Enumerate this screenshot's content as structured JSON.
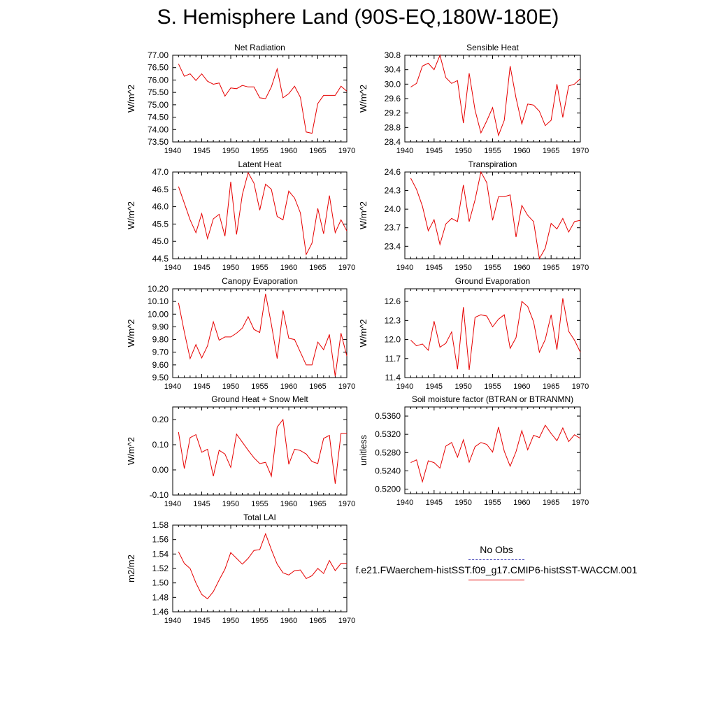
{
  "figure": {
    "title": "S. Hemisphere Land (90S-EQ,180W-180E)"
  },
  "legend": {
    "entries": [
      {
        "label": "No Obs",
        "color": "#3c3cb4",
        "dash": "dashed"
      },
      {
        "label": "f.e21.FWaerchem-histSST.f09_g17.CMIP6-histSST-WACCM.001",
        "color": "#e60000",
        "dash": "solid"
      }
    ]
  },
  "colors": {
    "series": "#e60000"
  },
  "chart_data": [
    {
      "type": "line",
      "title": "Net Radiation",
      "ylabel": "W/m^2",
      "xlim": [
        1940,
        1970
      ],
      "ylim": [
        73.5,
        77.0
      ],
      "yticks": [
        73.5,
        74.0,
        74.5,
        75.0,
        75.5,
        76.0,
        76.5,
        77.0
      ],
      "ytick_labels": [
        "73.50",
        "74.00",
        "74.50",
        "75.00",
        "75.50",
        "76.00",
        "76.50",
        "77.00"
      ],
      "xticks": [
        1940,
        1945,
        1950,
        1955,
        1960,
        1965,
        1970
      ],
      "xtick_labels": [
        "1940",
        "1945",
        "1950",
        "1955",
        "1960",
        "1965",
        "1970"
      ],
      "x_start": 1941,
      "values": [
        76.65,
        76.15,
        76.25,
        75.98,
        76.25,
        75.95,
        75.83,
        75.88,
        75.35,
        75.68,
        75.65,
        75.78,
        75.72,
        75.72,
        75.28,
        75.25,
        75.72,
        76.45,
        75.28,
        75.45,
        75.75,
        75.3,
        73.9,
        73.85,
        75.05,
        75.38,
        75.38,
        75.38,
        75.75,
        75.55
      ]
    },
    {
      "type": "line",
      "title": "Sensible Heat",
      "ylabel": "W/m^2",
      "xlim": [
        1940,
        1970
      ],
      "ylim": [
        28.4,
        30.8
      ],
      "yticks": [
        28.4,
        28.8,
        29.2,
        29.6,
        30.0,
        30.4,
        30.8
      ],
      "ytick_labels": [
        "28.4",
        "28.8",
        "29.2",
        "29.6",
        "30.0",
        "30.4",
        "30.8"
      ],
      "xticks": [
        1940,
        1945,
        1950,
        1955,
        1960,
        1965,
        1970
      ],
      "xtick_labels": [
        "1940",
        "1945",
        "1950",
        "1955",
        "1960",
        "1965",
        "1970"
      ],
      "x_start": 1941,
      "values": [
        29.92,
        30.02,
        30.5,
        30.58,
        30.4,
        30.8,
        30.18,
        30.02,
        30.1,
        28.92,
        30.3,
        29.28,
        28.65,
        28.98,
        29.35,
        28.58,
        29.0,
        30.5,
        29.62,
        28.9,
        29.45,
        29.42,
        29.25,
        28.85,
        29.0,
        30.0,
        29.08,
        29.95,
        30.0,
        30.15
      ]
    },
    {
      "type": "line",
      "title": "Latent Heat",
      "ylabel": "W/m^2",
      "xlim": [
        1940,
        1970
      ],
      "ylim": [
        44.5,
        47.0
      ],
      "yticks": [
        44.5,
        45.0,
        45.5,
        46.0,
        46.5,
        47.0
      ],
      "ytick_labels": [
        "44.5",
        "45.0",
        "45.5",
        "46.0",
        "46.5",
        "47.0"
      ],
      "xticks": [
        1940,
        1945,
        1950,
        1955,
        1960,
        1965,
        1970
      ],
      "xtick_labels": [
        "1940",
        "1945",
        "1950",
        "1955",
        "1960",
        "1965",
        "1970"
      ],
      "x_start": 1941,
      "values": [
        46.58,
        46.1,
        45.62,
        45.25,
        45.8,
        45.08,
        45.65,
        45.78,
        45.15,
        46.72,
        45.2,
        46.35,
        46.98,
        46.68,
        45.9,
        46.65,
        46.5,
        45.72,
        45.62,
        46.45,
        46.25,
        45.82,
        44.62,
        44.95,
        45.95,
        45.22,
        46.32,
        45.25,
        45.62,
        45.3
      ]
    },
    {
      "type": "line",
      "title": "Transpiration",
      "ylabel": "W/m^2",
      "xlim": [
        1940,
        1970
      ],
      "ylim": [
        23.2,
        24.6
      ],
      "yticks": [
        23.4,
        23.7,
        24.0,
        24.3,
        24.6
      ],
      "ytick_labels": [
        "23.4",
        "23.7",
        "24.0",
        "24.3",
        "24.6"
      ],
      "xticks": [
        1940,
        1945,
        1950,
        1955,
        1960,
        1965,
        1970
      ],
      "xtick_labels": [
        "1940",
        "1945",
        "1950",
        "1955",
        "1960",
        "1965",
        "1970"
      ],
      "x_start": 1941,
      "values": [
        24.5,
        24.32,
        24.05,
        23.65,
        23.83,
        23.43,
        23.76,
        23.85,
        23.8,
        24.39,
        23.8,
        24.15,
        24.6,
        24.43,
        23.82,
        24.2,
        24.2,
        24.23,
        23.55,
        24.06,
        23.9,
        23.8,
        23.2,
        23.37,
        23.77,
        23.68,
        23.85,
        23.63,
        23.8,
        23.82
      ]
    },
    {
      "type": "line",
      "title": "Canopy Evaporation",
      "ylabel": "W/m^2",
      "xlim": [
        1940,
        1970
      ],
      "ylim": [
        9.5,
        10.2
      ],
      "yticks": [
        9.5,
        9.6,
        9.7,
        9.8,
        9.9,
        10.0,
        10.1,
        10.2
      ],
      "ytick_labels": [
        "9.50",
        "9.60",
        "9.70",
        "9.80",
        "9.90",
        "10.00",
        "10.10",
        "10.20"
      ],
      "xticks": [
        1940,
        1945,
        1950,
        1955,
        1960,
        1965,
        1970
      ],
      "xtick_labels": [
        "1940",
        "1945",
        "1950",
        "1955",
        "1960",
        "1965",
        "1970"
      ],
      "x_start": 1941,
      "values": [
        10.09,
        9.86,
        9.65,
        9.76,
        9.655,
        9.75,
        9.94,
        9.795,
        9.82,
        9.82,
        9.85,
        9.89,
        9.98,
        9.88,
        9.855,
        10.16,
        9.92,
        9.65,
        10.03,
        9.81,
        9.8,
        9.7,
        9.6,
        9.6,
        9.78,
        9.72,
        9.84,
        9.51,
        9.85,
        9.67
      ]
    },
    {
      "type": "line",
      "title": "Ground Evaporation",
      "ylabel": "W/m^2",
      "xlim": [
        1940,
        1970
      ],
      "ylim": [
        11.4,
        12.8
      ],
      "yticks": [
        11.4,
        11.7,
        12.0,
        12.3,
        12.6
      ],
      "ytick_labels": [
        "11.4",
        "11.7",
        "12.0",
        "12.3",
        "12.6"
      ],
      "xticks": [
        1940,
        1945,
        1950,
        1955,
        1960,
        1965,
        1970
      ],
      "xtick_labels": [
        "1940",
        "1945",
        "1950",
        "1955",
        "1960",
        "1965",
        "1970"
      ],
      "x_start": 1941,
      "values": [
        11.99,
        11.9,
        11.93,
        11.83,
        12.29,
        11.88,
        11.94,
        12.12,
        11.53,
        12.51,
        11.52,
        12.35,
        12.39,
        12.37,
        12.2,
        12.32,
        12.39,
        11.86,
        12.03,
        12.6,
        12.52,
        12.28,
        11.8,
        12.0,
        12.39,
        11.84,
        12.65,
        12.13,
        11.99,
        11.8
      ]
    },
    {
      "type": "line",
      "title": "Ground Heat + Snow Melt",
      "ylabel": "W/m^2",
      "xlim": [
        1940,
        1970
      ],
      "ylim": [
        -0.1,
        0.25
      ],
      "yticks": [
        -0.1,
        0.0,
        0.1,
        0.2
      ],
      "ytick_labels": [
        "-0.10",
        "0.00",
        "0.10",
        "0.20"
      ],
      "xticks": [
        1940,
        1945,
        1950,
        1955,
        1960,
        1965,
        1970
      ],
      "xtick_labels": [
        "1940",
        "1945",
        "1950",
        "1955",
        "1960",
        "1965",
        "1970"
      ],
      "x_start": 1941,
      "values": [
        0.15,
        0.005,
        0.128,
        0.14,
        0.07,
        0.082,
        -0.025,
        0.078,
        0.063,
        0.01,
        0.142,
        0.11,
        0.078,
        0.048,
        0.025,
        0.03,
        -0.025,
        0.17,
        0.2,
        0.022,
        0.082,
        0.077,
        0.063,
        0.033,
        0.025,
        0.125,
        0.137,
        -0.055,
        0.145,
        0.145
      ]
    },
    {
      "type": "line",
      "title": "Soil moisture factor (BTRAN or BTRANMN)",
      "ylabel": "unitless",
      "xlim": [
        1940,
        1970
      ],
      "ylim": [
        0.519,
        0.538
      ],
      "yticks": [
        0.52,
        0.524,
        0.528,
        0.532,
        0.536
      ],
      "ytick_labels": [
        "0.5200",
        "0.5240",
        "0.5280",
        "0.5320",
        "0.5360"
      ],
      "xticks": [
        1940,
        1945,
        1950,
        1955,
        1960,
        1965,
        1970
      ],
      "xtick_labels": [
        "1940",
        "1945",
        "1950",
        "1955",
        "1960",
        "1965",
        "1970"
      ],
      "x_start": 1941,
      "values": [
        0.5258,
        0.5264,
        0.5216,
        0.5262,
        0.5258,
        0.5246,
        0.5294,
        0.5302,
        0.527,
        0.5308,
        0.5259,
        0.5293,
        0.5302,
        0.5298,
        0.5281,
        0.5336,
        0.5283,
        0.525,
        0.5282,
        0.5328,
        0.5286,
        0.5318,
        0.5313,
        0.534,
        0.5322,
        0.5306,
        0.5334,
        0.5304,
        0.5319,
        0.5311
      ]
    },
    {
      "type": "line",
      "title": "Total LAI",
      "ylabel": "m2/m2",
      "xlim": [
        1940,
        1970
      ],
      "ylim": [
        1.46,
        1.58
      ],
      "yticks": [
        1.46,
        1.48,
        1.5,
        1.52,
        1.54,
        1.56,
        1.58
      ],
      "ytick_labels": [
        "1.46",
        "1.48",
        "1.50",
        "1.52",
        "1.54",
        "1.56",
        "1.58"
      ],
      "xticks": [
        1940,
        1945,
        1950,
        1955,
        1960,
        1965,
        1970
      ],
      "xtick_labels": [
        "1940",
        "1945",
        "1950",
        "1955",
        "1960",
        "1965",
        "1970"
      ],
      "x_start": 1941,
      "values": [
        1.543,
        1.527,
        1.52,
        1.5,
        1.484,
        1.478,
        1.488,
        1.504,
        1.519,
        1.542,
        1.534,
        1.526,
        1.534,
        1.545,
        1.546,
        1.568,
        1.546,
        1.526,
        1.514,
        1.511,
        1.517,
        1.518,
        1.506,
        1.51,
        1.52,
        1.513,
        1.531,
        1.517,
        1.527,
        1.527
      ]
    }
  ]
}
